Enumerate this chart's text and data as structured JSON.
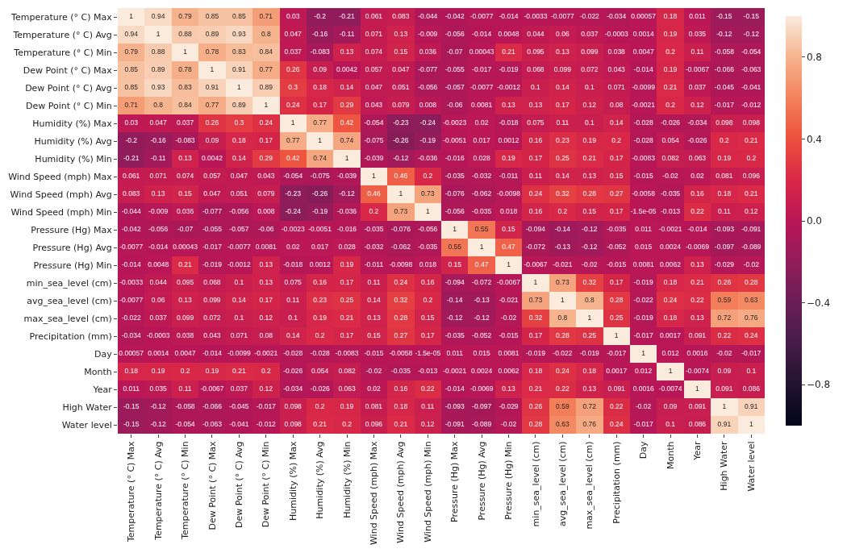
{
  "chart_data": {
    "type": "heatmap",
    "categories": [
      "Temperature (° C) Max",
      "Temperature (° C) Avg",
      "Temperature (° C) Min",
      "Dew Point (° C) Max",
      "Dew Point (° C) Avg",
      "Dew Point (° C) Min",
      "Humidity (%) Max",
      "Humidity (%) Avg",
      "Humidity (%) Min",
      "Wind Speed (mph) Max",
      "Wind Speed (mph) Avg",
      "Wind Speed (mph) Min",
      "Pressure (Hg) Max",
      "Pressure (Hg) Avg",
      "Pressure (Hg) Min",
      "min_sea_level (cm)",
      "avg_sea_level (cm)",
      "max_sea_level (cm)",
      "Precipitation (mm)",
      "Day",
      "Month",
      "Year",
      "High Water",
      "Water level"
    ],
    "y_categories": [
      "Temperature (° C) Max",
      "Temperature (° C) Avg",
      "Temperature (° C) Min",
      "Dew Point (° C) Max",
      "Dew Point (° C) Avg",
      "Dew Point (° C) Min",
      "Humidity (%) Max",
      "Humidity (%) Avg",
      "Humidity (%) Min",
      "Wind Speed (mph) Max",
      "Wind Speed (mph) Avg",
      "Wind Speed (mph) Min",
      "Pressure (Hg) Max",
      "Pressure (Hg) Avg",
      "Pressure (Hg) Min",
      "min_sea_level (cm)",
      "avg_sea_level (cm)",
      "max_sea_level (cm)",
      "Precipitation (mm)",
      "Day",
      "Month",
      "Year",
      "High Water",
      "Water level"
    ],
    "cells": [
      [
        1,
        0.94,
        0.79,
        0.85,
        0.85,
        0.71,
        0.03,
        -0.2,
        -0.21,
        0.061,
        0.083,
        -0.044,
        -0.042,
        -0.0077,
        -0.014,
        -0.0033,
        -0.0077,
        -0.022,
        -0.034,
        0.00057,
        0.18,
        0.011,
        -0.15,
        -0.15
      ],
      [
        0.94,
        1,
        0.88,
        0.89,
        0.93,
        0.8,
        0.047,
        -0.16,
        -0.11,
        0.071,
        0.13,
        -0.009,
        -0.056,
        -0.014,
        0.0048,
        0.044,
        0.06,
        0.037,
        -0.0003,
        0.0014,
        0.19,
        0.035,
        -0.12,
        -0.12
      ],
      [
        0.79,
        0.88,
        1,
        0.78,
        0.83,
        0.84,
        0.037,
        -0.083,
        0.13,
        0.074,
        0.15,
        0.036,
        -0.07,
        0.00043,
        0.21,
        0.095,
        0.13,
        0.099,
        0.038,
        0.0047,
        0.2,
        0.11,
        -0.058,
        -0.054
      ],
      [
        0.85,
        0.89,
        0.78,
        1,
        0.91,
        0.77,
        0.26,
        0.09,
        0.0042,
        0.057,
        0.047,
        -0.077,
        -0.055,
        -0.017,
        -0.019,
        0.068,
        0.099,
        0.072,
        0.043,
        -0.014,
        0.19,
        -0.0067,
        -0.066,
        -0.063
      ],
      [
        0.85,
        0.93,
        0.83,
        0.91,
        1,
        0.89,
        0.3,
        0.18,
        0.14,
        0.047,
        0.051,
        -0.056,
        -0.057,
        -0.0077,
        -0.0012,
        0.1,
        0.14,
        0.1,
        0.071,
        -0.0099,
        0.21,
        0.037,
        -0.045,
        -0.041
      ],
      [
        0.71,
        0.8,
        0.84,
        0.77,
        0.89,
        1,
        0.24,
        0.17,
        0.29,
        0.043,
        0.079,
        0.008,
        -0.06,
        0.0081,
        0.13,
        0.13,
        0.17,
        0.12,
        0.08,
        -0.0021,
        0.2,
        0.12,
        -0.017,
        -0.012
      ],
      [
        0.03,
        0.047,
        0.037,
        0.26,
        0.3,
        0.24,
        1,
        0.77,
        0.42,
        -0.054,
        -0.23,
        -0.24,
        -0.0023,
        0.02,
        -0.018,
        0.075,
        0.11,
        0.1,
        0.14,
        -0.028,
        -0.026,
        -0.034,
        0.098,
        0.098
      ],
      [
        -0.2,
        -0.16,
        -0.083,
        0.09,
        0.18,
        0.17,
        0.77,
        1,
        0.74,
        -0.075,
        -0.26,
        -0.19,
        -0.0051,
        0.017,
        0.0012,
        0.16,
        0.23,
        0.19,
        0.2,
        -0.028,
        0.054,
        -0.026,
        0.2,
        0.21
      ],
      [
        -0.21,
        -0.11,
        0.13,
        0.0042,
        0.14,
        0.29,
        0.42,
        0.74,
        1,
        -0.039,
        -0.12,
        -0.036,
        -0.016,
        0.028,
        0.19,
        0.17,
        0.25,
        0.21,
        0.17,
        -0.0083,
        0.082,
        0.063,
        0.19,
        0.2
      ],
      [
        0.061,
        0.071,
        0.074,
        0.057,
        0.047,
        0.043,
        -0.054,
        -0.075,
        -0.039,
        1,
        0.46,
        0.2,
        -0.035,
        -0.032,
        -0.011,
        0.11,
        0.14,
        0.13,
        0.15,
        -0.015,
        -0.02,
        0.02,
        0.081,
        0.096
      ],
      [
        0.083,
        0.13,
        0.15,
        0.047,
        0.051,
        0.079,
        -0.23,
        -0.26,
        -0.12,
        0.46,
        1,
        0.73,
        -0.076,
        -0.062,
        -0.0098,
        0.24,
        0.32,
        0.28,
        0.27,
        -0.0058,
        -0.035,
        0.16,
        0.18,
        0.21
      ],
      [
        -0.044,
        -0.009,
        0.036,
        -0.077,
        -0.056,
        0.008,
        -0.24,
        -0.19,
        -0.036,
        0.2,
        0.73,
        1,
        -0.056,
        -0.035,
        0.018,
        0.16,
        0.2,
        0.15,
        0.17,
        -1.5e-05,
        -0.013,
        0.22,
        0.11,
        0.12
      ],
      [
        -0.042,
        -0.056,
        -0.07,
        -0.055,
        -0.057,
        -0.06,
        -0.0023,
        -0.0051,
        -0.016,
        -0.035,
        -0.076,
        -0.056,
        1,
        0.55,
        0.15,
        -0.094,
        -0.14,
        -0.12,
        -0.035,
        0.011,
        -0.0021,
        -0.014,
        -0.093,
        -0.091
      ],
      [
        -0.0077,
        -0.014,
        0.00043,
        -0.017,
        -0.0077,
        0.0081,
        0.02,
        0.017,
        0.028,
        -0.032,
        -0.062,
        -0.035,
        0.55,
        1,
        0.47,
        -0.072,
        -0.13,
        -0.12,
        -0.052,
        0.015,
        0.0024,
        -0.0069,
        -0.097,
        -0.089
      ],
      [
        -0.014,
        0.0048,
        0.21,
        -0.019,
        -0.0012,
        0.13,
        -0.018,
        0.0012,
        0.19,
        -0.011,
        -0.0098,
        0.018,
        0.15,
        0.47,
        1,
        -0.0067,
        -0.021,
        -0.02,
        -0.015,
        0.0081,
        0.0062,
        0.13,
        -0.029,
        -0.02
      ],
      [
        -0.0033,
        0.044,
        0.095,
        0.068,
        0.1,
        0.13,
        0.075,
        0.16,
        0.17,
        0.11,
        0.24,
        0.16,
        -0.094,
        -0.072,
        -0.0067,
        1,
        0.73,
        0.32,
        0.17,
        -0.019,
        0.18,
        0.21,
        0.26,
        0.28
      ],
      [
        -0.0077,
        0.06,
        0.13,
        0.099,
        0.14,
        0.17,
        0.11,
        0.23,
        0.25,
        0.14,
        0.32,
        0.2,
        -0.14,
        -0.13,
        -0.021,
        0.73,
        1,
        0.8,
        0.28,
        -0.022,
        0.24,
        0.22,
        0.59,
        0.63
      ],
      [
        -0.022,
        0.037,
        0.099,
        0.072,
        0.1,
        0.12,
        0.1,
        0.19,
        0.21,
        0.13,
        0.28,
        0.15,
        -0.12,
        -0.12,
        -0.02,
        0.32,
        0.8,
        1,
        0.25,
        -0.019,
        0.18,
        0.13,
        0.72,
        0.76
      ],
      [
        -0.034,
        -0.0003,
        0.038,
        0.043,
        0.071,
        0.08,
        0.14,
        0.2,
        0.17,
        0.15,
        0.27,
        0.17,
        -0.035,
        -0.052,
        -0.015,
        0.17,
        0.28,
        0.25,
        1,
        -0.017,
        0.0017,
        0.091,
        0.22,
        0.24
      ],
      [
        0.00057,
        0.0014,
        0.0047,
        -0.014,
        -0.0099,
        -0.0021,
        -0.028,
        -0.028,
        -0.0083,
        -0.015,
        -0.0058,
        -1.5e-05,
        0.011,
        0.015,
        0.0081,
        -0.019,
        -0.022,
        -0.019,
        -0.017,
        1,
        0.012,
        0.0016,
        -0.02,
        -0.017
      ],
      [
        0.18,
        0.19,
        0.2,
        0.19,
        0.21,
        0.2,
        -0.026,
        0.054,
        0.082,
        -0.02,
        -0.035,
        -0.013,
        -0.0021,
        0.0024,
        0.0062,
        0.18,
        0.24,
        0.18,
        0.0017,
        0.012,
        1,
        -0.0074,
        0.09,
        0.1
      ],
      [
        0.011,
        0.035,
        0.11,
        -0.0067,
        0.037,
        0.12,
        -0.034,
        -0.026,
        0.063,
        0.02,
        0.16,
        0.22,
        -0.014,
        -0.0069,
        0.13,
        0.21,
        0.22,
        0.13,
        0.091,
        0.0016,
        -0.0074,
        1,
        0.091,
        0.086
      ],
      [
        -0.15,
        -0.12,
        -0.058,
        -0.066,
        -0.045,
        -0.017,
        0.098,
        0.2,
        0.19,
        0.081,
        0.18,
        0.11,
        -0.093,
        -0.097,
        -0.029,
        0.26,
        0.59,
        0.72,
        0.22,
        -0.02,
        0.09,
        0.091,
        1,
        0.91
      ],
      [
        -0.15,
        -0.12,
        -0.054,
        -0.063,
        -0.041,
        -0.012,
        0.098,
        0.21,
        0.2,
        0.096,
        0.21,
        0.12,
        -0.091,
        -0.089,
        -0.02,
        0.28,
        0.63,
        0.76,
        0.24,
        -0.017,
        0.1,
        0.086,
        0.91,
        1
      ]
    ],
    "clim": [
      -1,
      1
    ],
    "cticks": [
      {
        "value": -0.8,
        "label": "−0.8"
      },
      {
        "value": -0.4,
        "label": "−0.4"
      },
      {
        "value": 0.0,
        "label": "0.0"
      },
      {
        "value": 0.4,
        "label": "0.4"
      },
      {
        "value": 0.8,
        "label": "0.8"
      }
    ],
    "data_labels": true
  }
}
